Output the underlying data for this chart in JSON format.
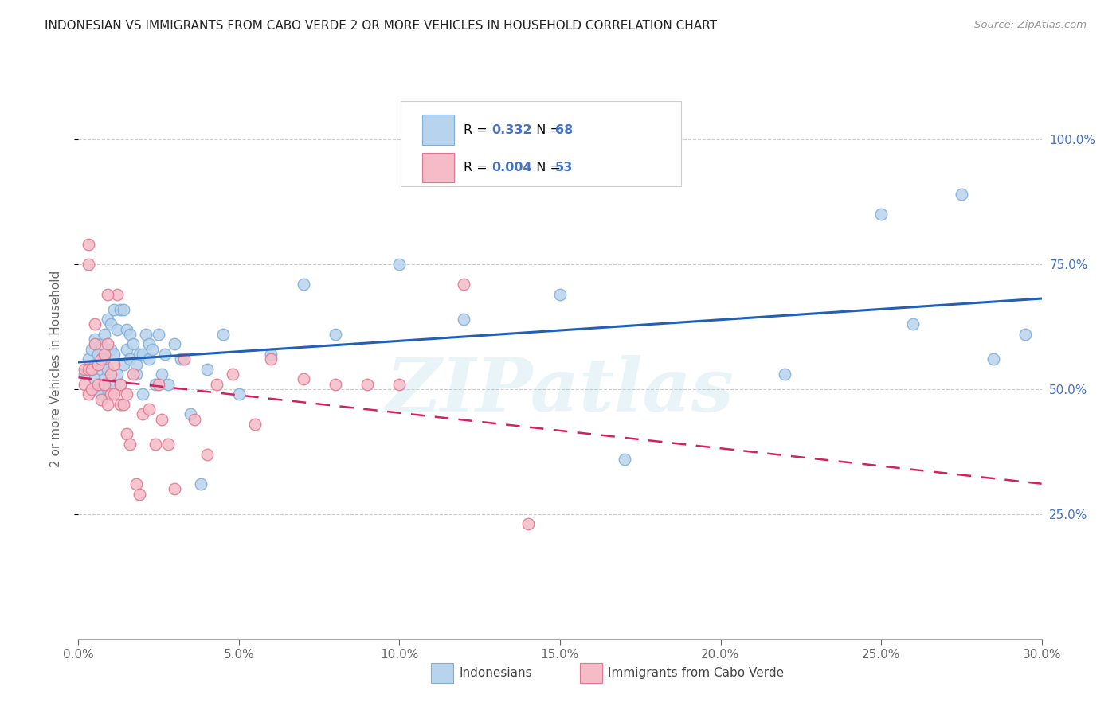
{
  "title": "INDONESIAN VS IMMIGRANTS FROM CABO VERDE 2 OR MORE VEHICLES IN HOUSEHOLD CORRELATION CHART",
  "source": "Source: ZipAtlas.com",
  "ylabel": "2 or more Vehicles in Household",
  "xmin": 0.0,
  "xmax": 0.3,
  "ymin": 0.0,
  "ymax": 1.08,
  "blue_label_R": "R =  0.332",
  "blue_label_N": "N = 68",
  "pink_label_R": "R =  0.004",
  "pink_label_N": "N = 53",
  "blue_scatter_color": "#b8d3ed",
  "blue_scatter_edge": "#80aed4",
  "pink_scatter_color": "#f5bcc8",
  "pink_scatter_edge": "#e07890",
  "blue_line_color": "#2060b8",
  "pink_line_color": "#d42060",
  "watermark": "ZIPatlas",
  "legend_text_color": "#4472c4",
  "blue_x": [
    0.002,
    0.003,
    0.004,
    0.005,
    0.005,
    0.005,
    0.006,
    0.006,
    0.007,
    0.007,
    0.007,
    0.008,
    0.008,
    0.008,
    0.009,
    0.009,
    0.009,
    0.01,
    0.01,
    0.01,
    0.011,
    0.011,
    0.011,
    0.012,
    0.012,
    0.013,
    0.013,
    0.014,
    0.014,
    0.015,
    0.015,
    0.016,
    0.016,
    0.017,
    0.018,
    0.018,
    0.019,
    0.02,
    0.02,
    0.021,
    0.022,
    0.022,
    0.023,
    0.024,
    0.025,
    0.026,
    0.027,
    0.028,
    0.03,
    0.032,
    0.035,
    0.038,
    0.04,
    0.045,
    0.05,
    0.06,
    0.07,
    0.08,
    0.1,
    0.12,
    0.15,
    0.17,
    0.22,
    0.25,
    0.26,
    0.275,
    0.285,
    0.295
  ],
  "blue_y": [
    0.53,
    0.56,
    0.58,
    0.55,
    0.6,
    0.52,
    0.5,
    0.57,
    0.49,
    0.54,
    0.59,
    0.52,
    0.56,
    0.61,
    0.5,
    0.54,
    0.64,
    0.49,
    0.58,
    0.63,
    0.51,
    0.57,
    0.66,
    0.53,
    0.62,
    0.51,
    0.66,
    0.55,
    0.66,
    0.58,
    0.62,
    0.56,
    0.61,
    0.59,
    0.53,
    0.55,
    0.57,
    0.49,
    0.57,
    0.61,
    0.59,
    0.56,
    0.58,
    0.51,
    0.61,
    0.53,
    0.57,
    0.51,
    0.59,
    0.56,
    0.45,
    0.31,
    0.54,
    0.61,
    0.49,
    0.57,
    0.71,
    0.61,
    0.75,
    0.64,
    0.69,
    0.36,
    0.53,
    0.85,
    0.63,
    0.89,
    0.56,
    0.61
  ],
  "pink_x": [
    0.002,
    0.002,
    0.003,
    0.003,
    0.004,
    0.004,
    0.005,
    0.005,
    0.006,
    0.006,
    0.007,
    0.007,
    0.008,
    0.008,
    0.009,
    0.009,
    0.01,
    0.01,
    0.011,
    0.011,
    0.012,
    0.013,
    0.013,
    0.014,
    0.015,
    0.015,
    0.016,
    0.017,
    0.018,
    0.019,
    0.02,
    0.022,
    0.024,
    0.026,
    0.028,
    0.03,
    0.033,
    0.036,
    0.04,
    0.043,
    0.048,
    0.055,
    0.06,
    0.07,
    0.08,
    0.09,
    0.1,
    0.12,
    0.14,
    0.003,
    0.003,
    0.009,
    0.025
  ],
  "pink_y": [
    0.51,
    0.54,
    0.49,
    0.54,
    0.5,
    0.54,
    0.63,
    0.59,
    0.51,
    0.55,
    0.48,
    0.56,
    0.57,
    0.51,
    0.59,
    0.47,
    0.53,
    0.49,
    0.49,
    0.55,
    0.69,
    0.51,
    0.47,
    0.47,
    0.49,
    0.41,
    0.39,
    0.53,
    0.31,
    0.29,
    0.45,
    0.46,
    0.39,
    0.44,
    0.39,
    0.3,
    0.56,
    0.44,
    0.37,
    0.51,
    0.53,
    0.43,
    0.56,
    0.52,
    0.51,
    0.51,
    0.51,
    0.71,
    0.23,
    0.75,
    0.79,
    0.69,
    0.51
  ]
}
